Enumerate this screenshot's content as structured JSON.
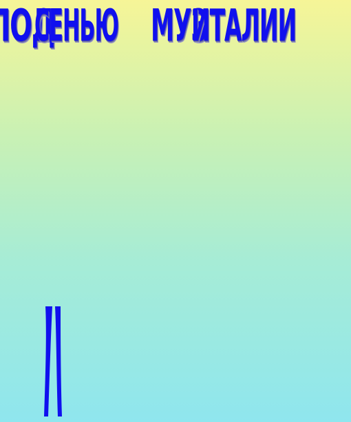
{
  "slide": {
    "words": [
      {
        "text": "ПОД"
      },
      {
        "text": "СЕНЬЮ"
      },
      {
        "text": "МУЗ"
      },
      {
        "text": "ИТАЛИИ"
      }
    ],
    "colors": {
      "text": "#1010ee",
      "gradient_top": "#f6f597",
      "gradient_bottom": "#8fe6ee"
    }
  }
}
